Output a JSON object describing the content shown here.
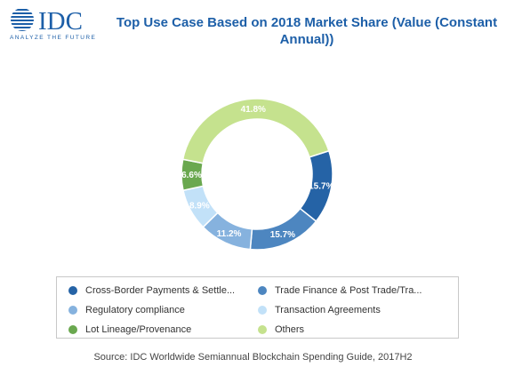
{
  "logo": {
    "text": "IDC",
    "tagline": "ANALYZE THE FUTURE"
  },
  "chart_data": {
    "type": "pie",
    "variant": "donut",
    "title": "Top Use Case Based on 2018 Market Share (Value (Constant Annual))",
    "legend_position": "bottom",
    "series": [
      {
        "name": "Cross-Border Payments & Settle...",
        "value": 15.7,
        "label": "15.7%",
        "color": "#2563a6"
      },
      {
        "name": "Trade Finance & Post Trade/Tra...",
        "value": 15.7,
        "label": "15.7%",
        "color": "#4d86c0"
      },
      {
        "name": "Regulatory compliance",
        "value": 11.2,
        "label": "11.2%",
        "color": "#86b2de"
      },
      {
        "name": "Transaction Agreements",
        "value": 8.9,
        "label": "8.9%",
        "color": "#c2e1f8"
      },
      {
        "name": "Lot Lineage/Provenance",
        "value": 6.6,
        "label": "6.6%",
        "color": "#6aa84f"
      },
      {
        "name": "Others",
        "value": 41.8,
        "label": "41.8%",
        "color": "#c5e28e"
      }
    ]
  },
  "source": "Source: IDC Worldwide Semiannual Blockchain Spending Guide, 2017H2"
}
